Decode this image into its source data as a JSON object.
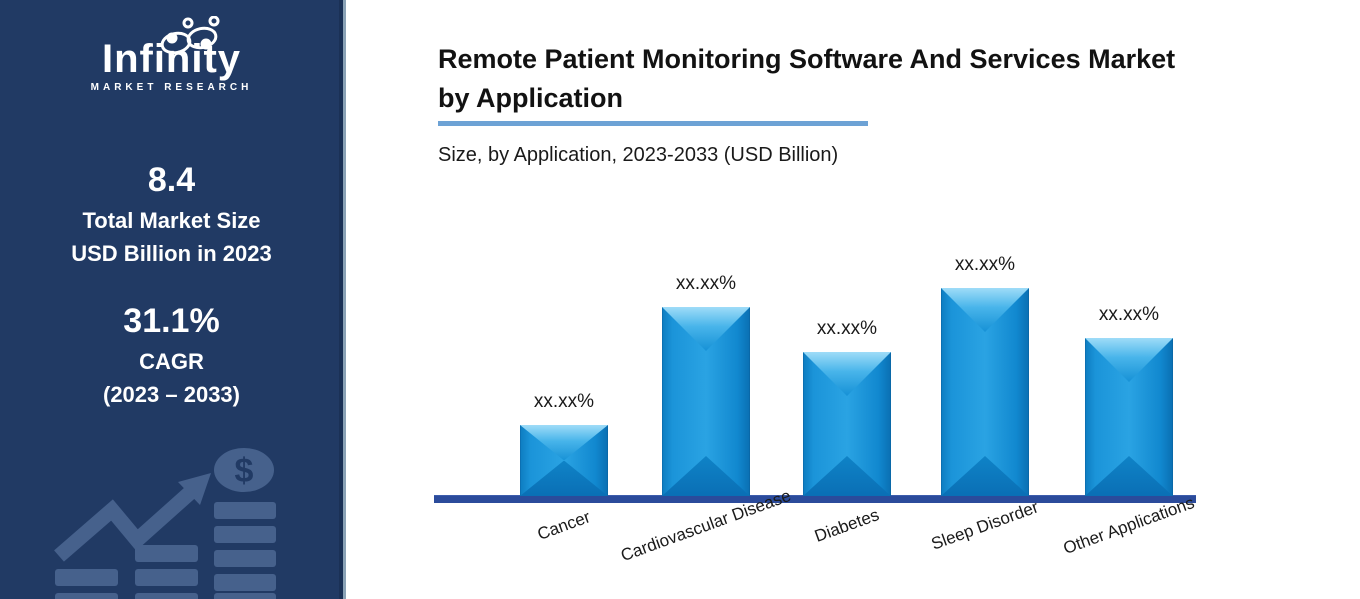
{
  "sidebar": {
    "logo": {
      "name": "Infinity",
      "tagline": "MARKET RESEARCH"
    },
    "market_size": {
      "value": "8.4",
      "line1": "Total Market Size",
      "line2": "USD Billion in 2023"
    },
    "cagr": {
      "value": "31.1%",
      "label": "CAGR",
      "period": "(2023 – 2033)"
    },
    "art": {
      "coin_symbol": "$"
    }
  },
  "header": {
    "title_line1": "Remote Patient Monitoring Software And Services Market",
    "title_line2": "by Application",
    "subtitle": "Size, by Application, 2023-2033 (USD Billion)"
  },
  "chart_data": {
    "type": "bar",
    "title": "Remote Patient Monitoring Software And Services Market by Application",
    "subtitle": "Size, by Application, 2023-2033 (USD Billion)",
    "categories": [
      "Cancer",
      "Cardiovascular Disease",
      "Diabetes",
      "Sleep Disorder",
      "Other Applications"
    ],
    "value_labels": [
      "xx.xx%",
      "xx.xx%",
      "xx.xx%",
      "xx.xx%",
      "xx.xx%"
    ],
    "values_masked": true,
    "relative_heights": [
      0.34,
      0.91,
      0.69,
      1.0,
      0.76
    ],
    "xlabel": "",
    "ylabel": "",
    "grid": false,
    "legend": "none",
    "bar_color": "#1487ce",
    "axis_line_color": "#2b4b9b"
  },
  "colors": {
    "sidebar_bg": "#213a64",
    "sidebar_art": "#46618c",
    "sidebar_edge": "#8aa2b6",
    "bar_fill": "#1487ce",
    "bar_highlight": "#9fdcf8",
    "axis_line": "#2b4b9b",
    "title_underline": "#6da2d5",
    "title_text": "#121212",
    "text_on_sidebar": "#ffffff"
  }
}
